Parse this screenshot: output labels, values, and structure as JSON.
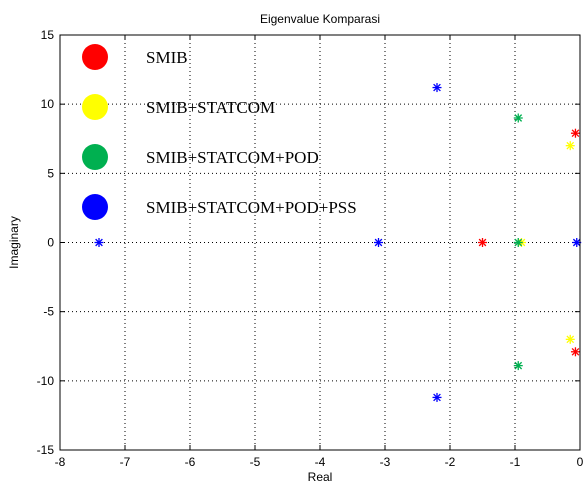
{
  "chart_data": {
    "type": "scatter",
    "title": "Eigenvalue Komparasi",
    "xlabel": "Real",
    "ylabel": "Imaginary",
    "xlim": [
      -8,
      0
    ],
    "ylim": [
      -15,
      15
    ],
    "xticks": [
      -8,
      -7,
      -6,
      -5,
      -4,
      -3,
      -2,
      -1,
      0
    ],
    "yticks": [
      -15,
      -10,
      -5,
      0,
      5,
      10,
      15
    ],
    "grid": true,
    "legend_position": "top-left",
    "marker": "asterisk",
    "series": [
      {
        "name": "SMIB",
        "color": "#ff0000",
        "points": [
          [
            -1.5,
            0
          ],
          [
            -0.07,
            7.9
          ],
          [
            -0.07,
            -7.9
          ]
        ]
      },
      {
        "name": "SMIB+STATCOM",
        "color": "#ffff00",
        "points": [
          [
            -0.9,
            0
          ],
          [
            -0.15,
            7.0
          ],
          [
            -0.15,
            -7.0
          ]
        ]
      },
      {
        "name": "SMIB+STATCOM+POD",
        "color": "#00b050",
        "points": [
          [
            -0.95,
            0
          ],
          [
            -0.95,
            9.0
          ],
          [
            -0.95,
            -8.9
          ]
        ]
      },
      {
        "name": "SMIB+STATCOM+POD+PSS",
        "color": "#0000ff",
        "points": [
          [
            -7.4,
            0
          ],
          [
            -3.1,
            0
          ],
          [
            -2.2,
            11.2
          ],
          [
            -2.2,
            -11.2
          ],
          [
            -0.05,
            0
          ]
        ]
      }
    ]
  }
}
